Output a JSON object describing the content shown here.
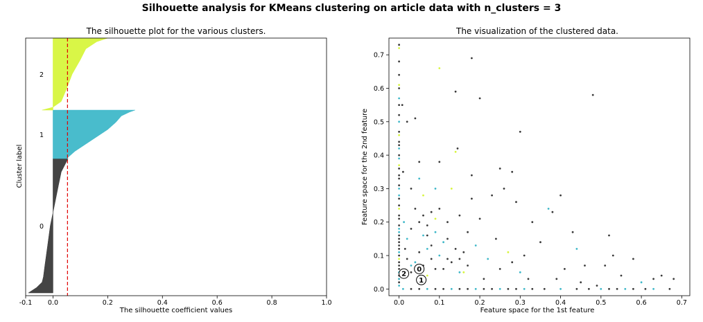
{
  "suptitle": "Silhouette analysis for KMeans clustering on article data with n_clusters = 3",
  "chart_data": [
    {
      "type": "area",
      "title": "The silhouette plot for the various clusters.",
      "xlabel": "The silhouette coefficient values",
      "ylabel": "Cluster label",
      "xlim": [
        -0.1,
        1.0
      ],
      "xticks": [
        "-0.1",
        "0.0",
        "0.2",
        "0.4",
        "0.6",
        "0.8",
        "1.0"
      ],
      "xtick_values": [
        -0.1,
        0.0,
        0.2,
        0.4,
        0.6,
        0.8,
        1.0
      ],
      "average_silhouette": 0.053,
      "clusters": [
        {
          "label": "0",
          "color": "#3a3a3a",
          "profile": [
            [
              0,
              -0.09
            ],
            [
              0.04,
              -0.06
            ],
            [
              0.08,
              -0.04
            ],
            [
              0.12,
              -0.035
            ],
            [
              0.2,
              -0.03
            ],
            [
              0.35,
              -0.02
            ],
            [
              0.5,
              -0.01
            ],
            [
              0.6,
              0.0
            ],
            [
              0.7,
              0.01
            ],
            [
              0.8,
              0.02
            ],
            [
              0.9,
              0.03
            ],
            [
              0.96,
              0.045
            ],
            [
              1,
              0.055
            ]
          ]
        },
        {
          "label": "1",
          "color": "#3fb8c9",
          "profile": [
            [
              0,
              0.05
            ],
            [
              0.05,
              0.06
            ],
            [
              0.15,
              0.08
            ],
            [
              0.3,
              0.12
            ],
            [
              0.45,
              0.16
            ],
            [
              0.6,
              0.2
            ],
            [
              0.75,
              0.23
            ],
            [
              0.88,
              0.25
            ],
            [
              0.96,
              0.28
            ],
            [
              1,
              0.3
            ]
          ]
        },
        {
          "label": "2",
          "color": "#d7f53d",
          "profile": [
            [
              0,
              -0.04
            ],
            [
              0.04,
              0.0
            ],
            [
              0.12,
              0.03
            ],
            [
              0.3,
              0.05
            ],
            [
              0.5,
              0.07
            ],
            [
              0.7,
              0.1
            ],
            [
              0.85,
              0.12
            ],
            [
              0.95,
              0.16
            ],
            [
              1,
              0.2
            ]
          ]
        }
      ]
    },
    {
      "type": "scatter",
      "title": "The visualization of the clustered data.",
      "xlabel": "Feature space for the 1st feature",
      "ylabel": "Feature space for the 2nd feature",
      "xlim": [
        -0.025,
        0.72
      ],
      "ylim": [
        -0.02,
        0.75
      ],
      "xticks": [
        "0.0",
        "0.1",
        "0.2",
        "0.3",
        "0.4",
        "0.5",
        "0.6",
        "0.7"
      ],
      "xtick_values": [
        0.0,
        0.1,
        0.2,
        0.3,
        0.4,
        0.5,
        0.6,
        0.7
      ],
      "yticks": [
        "0.0",
        "0.1",
        "0.2",
        "0.3",
        "0.4",
        "0.5",
        "0.6",
        "0.7"
      ],
      "ytick_values": [
        0.0,
        0.1,
        0.2,
        0.3,
        0.4,
        0.5,
        0.6,
        0.7
      ],
      "colors": {
        "0": "#3a3a3a",
        "1": "#3fb8c9",
        "2": "#d7f53d"
      },
      "centers": [
        {
          "label": "0",
          "x": 0.05,
          "y": 0.06
        },
        {
          "label": "1",
          "x": 0.055,
          "y": 0.027
        },
        {
          "label": "2",
          "x": 0.012,
          "y": 0.046
        }
      ],
      "points": [
        [
          0.0,
          0.73,
          0
        ],
        [
          0.0,
          0.72,
          2
        ],
        [
          0.0,
          0.68,
          0
        ],
        [
          0.0,
          0.64,
          0
        ],
        [
          0.0,
          0.61,
          2
        ],
        [
          0.0,
          0.6,
          0
        ],
        [
          0.0,
          0.55,
          0
        ],
        [
          0.0,
          0.5,
          1
        ],
        [
          0.0,
          0.46,
          2
        ],
        [
          0.0,
          0.44,
          0
        ],
        [
          0.0,
          0.42,
          1
        ],
        [
          0.0,
          0.4,
          0
        ],
        [
          0.0,
          0.37,
          2
        ],
        [
          0.0,
          0.34,
          0
        ],
        [
          0.0,
          0.3,
          1
        ],
        [
          0.0,
          0.27,
          0
        ],
        [
          0.0,
          0.24,
          2
        ],
        [
          0.0,
          0.21,
          0
        ],
        [
          0.0,
          0.18,
          1
        ],
        [
          0.0,
          0.15,
          0
        ],
        [
          0.0,
          0.12,
          0
        ],
        [
          0.0,
          0.09,
          2
        ],
        [
          0.0,
          0.06,
          0
        ],
        [
          0.0,
          0.03,
          1
        ],
        [
          0.008,
          0.55,
          0
        ],
        [
          0.01,
          0.35,
          0
        ],
        [
          0.012,
          0.2,
          1
        ],
        [
          0.015,
          0.12,
          0
        ],
        [
          0.02,
          0.5,
          0
        ],
        [
          0.03,
          0.3,
          0
        ],
        [
          0.03,
          0.07,
          1
        ],
        [
          0.04,
          0.51,
          0
        ],
        [
          0.05,
          0.38,
          0
        ],
        [
          0.05,
          0.33,
          1
        ],
        [
          0.06,
          0.28,
          2
        ],
        [
          0.06,
          0.22,
          0
        ],
        [
          0.07,
          0.16,
          0
        ],
        [
          0.07,
          0.12,
          1
        ],
        [
          0.08,
          0.09,
          0
        ],
        [
          0.09,
          0.3,
          1
        ],
        [
          0.09,
          0.17,
          1
        ],
        [
          0.1,
          0.38,
          0
        ],
        [
          0.1,
          0.66,
          2
        ],
        [
          0.1,
          0.24,
          0
        ],
        [
          0.11,
          0.14,
          1
        ],
        [
          0.12,
          0.2,
          0
        ],
        [
          0.12,
          0.09,
          0
        ],
        [
          0.13,
          0.3,
          2
        ],
        [
          0.14,
          0.59,
          0
        ],
        [
          0.14,
          0.41,
          2
        ],
        [
          0.145,
          0.42,
          0
        ],
        [
          0.15,
          0.22,
          0
        ],
        [
          0.15,
          0.05,
          1
        ],
        [
          0.16,
          0.11,
          0
        ],
        [
          0.17,
          0.17,
          0
        ],
        [
          0.18,
          0.69,
          0
        ],
        [
          0.18,
          0.34,
          0
        ],
        [
          0.18,
          0.27,
          0
        ],
        [
          0.19,
          0.13,
          1
        ],
        [
          0.2,
          0.57,
          0
        ],
        [
          0.2,
          0.21,
          0
        ],
        [
          0.21,
          0.03,
          0
        ],
        [
          0.22,
          0.09,
          1
        ],
        [
          0.23,
          0.28,
          0
        ],
        [
          0.24,
          0.15,
          0
        ],
        [
          0.25,
          0.36,
          0
        ],
        [
          0.25,
          0.06,
          0
        ],
        [
          0.26,
          0.3,
          0
        ],
        [
          0.27,
          0.11,
          2
        ],
        [
          0.28,
          0.35,
          0
        ],
        [
          0.28,
          0.08,
          0
        ],
        [
          0.29,
          0.26,
          0
        ],
        [
          0.3,
          0.47,
          0
        ],
        [
          0.3,
          0.05,
          1
        ],
        [
          0.31,
          0.1,
          0
        ],
        [
          0.32,
          0.03,
          0
        ],
        [
          0.33,
          0.2,
          0
        ],
        [
          0.35,
          0.14,
          0
        ],
        [
          0.37,
          0.24,
          1
        ],
        [
          0.38,
          0.23,
          0
        ],
        [
          0.39,
          0.03,
          0
        ],
        [
          0.4,
          0.28,
          0
        ],
        [
          0.41,
          0.06,
          0
        ],
        [
          0.43,
          0.17,
          0
        ],
        [
          0.44,
          0.12,
          1
        ],
        [
          0.45,
          0.02,
          0
        ],
        [
          0.46,
          0.07,
          0
        ],
        [
          0.48,
          0.58,
          0
        ],
        [
          0.49,
          0.01,
          0
        ],
        [
          0.51,
          0.07,
          0
        ],
        [
          0.52,
          0.16,
          0
        ],
        [
          0.53,
          0.1,
          0
        ],
        [
          0.55,
          0.04,
          0
        ],
        [
          0.58,
          0.09,
          0
        ],
        [
          0.6,
          0.02,
          1
        ],
        [
          0.63,
          0.03,
          0
        ],
        [
          0.65,
          0.04,
          0
        ],
        [
          0.68,
          0.03,
          0
        ],
        [
          0.02,
          0.09,
          0
        ],
        [
          0.03,
          0.05,
          0
        ],
        [
          0.04,
          0.08,
          1
        ],
        [
          0.05,
          0.11,
          0
        ],
        [
          0.06,
          0.07,
          0
        ],
        [
          0.07,
          0.04,
          2
        ],
        [
          0.08,
          0.13,
          0
        ],
        [
          0.09,
          0.06,
          0
        ],
        [
          0.1,
          0.1,
          1
        ],
        [
          0.11,
          0.06,
          0
        ],
        [
          0.12,
          0.15,
          0
        ],
        [
          0.13,
          0.08,
          0
        ],
        [
          0.14,
          0.12,
          0
        ],
        [
          0.15,
          0.09,
          0
        ],
        [
          0.16,
          0.05,
          2
        ],
        [
          0.17,
          0.07,
          0
        ],
        [
          0.02,
          0.15,
          1
        ],
        [
          0.03,
          0.18,
          0
        ],
        [
          0.04,
          0.24,
          0
        ],
        [
          0.05,
          0.2,
          0
        ],
        [
          0.06,
          0.16,
          1
        ],
        [
          0.07,
          0.19,
          0
        ],
        [
          0.08,
          0.23,
          0
        ],
        [
          0.09,
          0.21,
          2
        ]
      ],
      "baseline_points_x": [
        0.01,
        0.03,
        0.05,
        0.07,
        0.09,
        0.11,
        0.13,
        0.15,
        0.17,
        0.19,
        0.21,
        0.23,
        0.25,
        0.27,
        0.29,
        0.31,
        0.33,
        0.36,
        0.4,
        0.44,
        0.47,
        0.5,
        0.52,
        0.54,
        0.56,
        0.58,
        0.61,
        0.63,
        0.67
      ],
      "vertical_points_y": [
        0.01,
        0.02,
        0.03,
        0.04,
        0.05,
        0.07,
        0.08,
        0.1,
        0.11,
        0.13,
        0.14,
        0.16,
        0.17,
        0.19,
        0.22,
        0.25,
        0.28,
        0.31,
        0.33,
        0.36,
        0.39,
        0.43,
        0.47,
        0.52,
        0.57
      ]
    }
  ]
}
